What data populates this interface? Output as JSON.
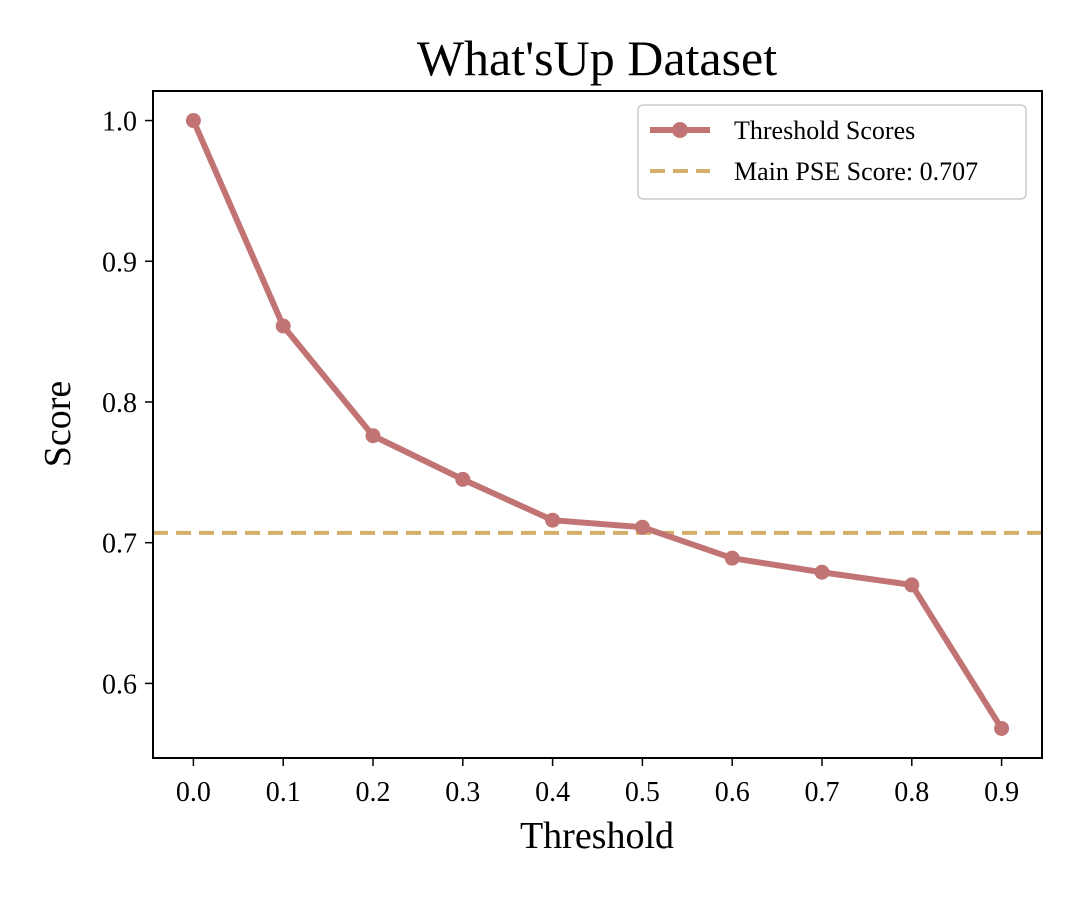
{
  "chart_data": {
    "type": "line",
    "title": "What'sUp Dataset",
    "xlabel": "Threshold",
    "ylabel": "Score",
    "x": [
      0.0,
      0.1,
      0.2,
      0.3,
      0.4,
      0.5,
      0.6,
      0.7,
      0.8,
      0.9
    ],
    "x_tick_labels": [
      "0.0",
      "0.1",
      "0.2",
      "0.3",
      "0.4",
      "0.5",
      "0.6",
      "0.7",
      "0.8",
      "0.9"
    ],
    "y_ticks": [
      0.6,
      0.7,
      0.8,
      0.9,
      1.0
    ],
    "y_tick_labels": [
      "0.6",
      "0.7",
      "0.8",
      "0.9",
      "1.0"
    ],
    "xlim": [
      -0.045,
      0.945
    ],
    "ylim": [
      0.547,
      1.021
    ],
    "grid": false,
    "legend_position": "top-right",
    "series": [
      {
        "name": "Threshold Scores",
        "color": "#c27474",
        "style": "solid-with-markers",
        "values": [
          1.0,
          0.854,
          0.776,
          0.745,
          0.716,
          0.711,
          0.689,
          0.679,
          0.67,
          0.568
        ]
      }
    ],
    "reference_lines": [
      {
        "name": "Main PSE Score: 0.707",
        "value": 0.707,
        "color": "#d4af6a",
        "style": "dashed"
      }
    ]
  }
}
